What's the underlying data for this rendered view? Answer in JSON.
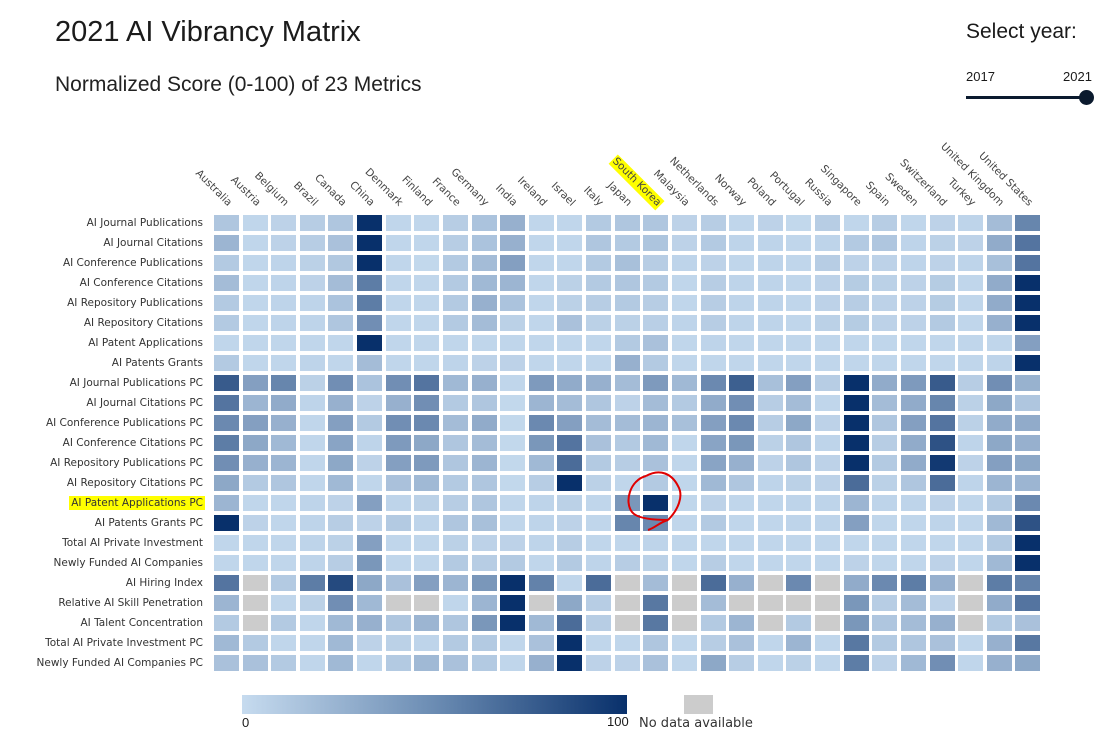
{
  "header": {
    "title": "2021 AI Vibrancy Matrix",
    "subtitle": "Normalized Score (0-100) of 23 Metrics"
  },
  "year_selector": {
    "label": "Select year:",
    "min": "2017",
    "max": "2021",
    "selected": 2021
  },
  "legend": {
    "min_label": "0",
    "max_label": "100",
    "no_data_label": "No data available",
    "color_low": "#c6dbef",
    "color_high": "#08306b",
    "color_na": "#cccccc"
  },
  "highlight": {
    "color": "#ffff00",
    "country": "South Korea",
    "metric": "AI Patent Applications PC",
    "annotation_color": "#e00000"
  },
  "chart_data": {
    "type": "heatmap",
    "title": "2021 AI Vibrancy Matrix",
    "subtitle": "Normalized Score (0-100) of 23 Metrics",
    "value_range": [
      0,
      100
    ],
    "columns": [
      "Australia",
      "Austria",
      "Belgium",
      "Brazil",
      "Canada",
      "China",
      "Denmark",
      "Finland",
      "France",
      "Germany",
      "India",
      "Ireland",
      "Israel",
      "Italy",
      "Japan",
      "South Korea",
      "Malaysia",
      "Netherlands",
      "Norway",
      "Poland",
      "Portugal",
      "Russia",
      "Singapore",
      "Spain",
      "Sweden",
      "Switzerland",
      "Turkey",
      "United Kingdom",
      "United States"
    ],
    "rows": [
      {
        "metric": "AI Journal Publications",
        "values": [
          12,
          3,
          5,
          8,
          12,
          100,
          3,
          3,
          8,
          14,
          25,
          3,
          3,
          10,
          12,
          12,
          5,
          8,
          3,
          5,
          2,
          8,
          3,
          8,
          3,
          5,
          4,
          18,
          50
        ]
      },
      {
        "metric": "AI Journal Citations",
        "values": [
          22,
          3,
          5,
          8,
          15,
          100,
          3,
          3,
          8,
          14,
          25,
          3,
          3,
          12,
          10,
          13,
          5,
          10,
          4,
          4,
          3,
          4,
          10,
          12,
          4,
          6,
          5,
          28,
          60
        ]
      },
      {
        "metric": "AI Conference Publications",
        "values": [
          10,
          3,
          4,
          6,
          11,
          100,
          3,
          2,
          10,
          18,
          35,
          3,
          3,
          10,
          16,
          8,
          4,
          5,
          3,
          4,
          3,
          8,
          5,
          5,
          4,
          5,
          4,
          16,
          60
        ]
      },
      {
        "metric": "AI Conference Citations",
        "values": [
          18,
          3,
          4,
          5,
          18,
          55,
          3,
          3,
          10,
          20,
          22,
          3,
          6,
          10,
          12,
          10,
          3,
          8,
          4,
          4,
          3,
          5,
          9,
          6,
          5,
          9,
          3,
          28,
          100
        ]
      },
      {
        "metric": "AI Repository Publications",
        "values": [
          10,
          3,
          4,
          4,
          14,
          55,
          3,
          3,
          10,
          25,
          14,
          3,
          6,
          8,
          10,
          8,
          3,
          8,
          4,
          4,
          3,
          5,
          8,
          5,
          5,
          9,
          3,
          28,
          100
        ]
      },
      {
        "metric": "AI Repository Citations",
        "values": [
          10,
          3,
          4,
          4,
          12,
          45,
          3,
          3,
          10,
          18,
          6,
          3,
          15,
          6,
          6,
          7,
          4,
          8,
          4,
          4,
          3,
          6,
          9,
          5,
          5,
          10,
          3,
          25,
          100
        ]
      },
      {
        "metric": "AI Patent Applications",
        "values": [
          3,
          3,
          3,
          3,
          3,
          100,
          3,
          3,
          3,
          3,
          3,
          3,
          3,
          3,
          10,
          15,
          3,
          4,
          3,
          3,
          3,
          3,
          3,
          3,
          3,
          3,
          3,
          3,
          35
        ]
      },
      {
        "metric": "AI Patents Grants",
        "values": [
          10,
          3,
          3,
          4,
          3,
          18,
          3,
          3,
          4,
          5,
          5,
          3,
          3,
          3,
          25,
          10,
          3,
          3,
          3,
          3,
          3,
          3,
          3,
          3,
          3,
          3,
          3,
          4,
          100
        ]
      },
      {
        "metric": "AI Journal Publications PC",
        "values": [
          75,
          35,
          50,
          6,
          45,
          14,
          45,
          60,
          20,
          25,
          3,
          38,
          28,
          25,
          18,
          38,
          20,
          48,
          72,
          16,
          35,
          8,
          100,
          28,
          38,
          75,
          8,
          45,
          24
        ]
      },
      {
        "metric": "AI Journal Citations PC",
        "values": [
          60,
          22,
          28,
          4,
          25,
          5,
          25,
          45,
          10,
          12,
          2,
          22,
          18,
          12,
          5,
          18,
          10,
          28,
          45,
          8,
          18,
          3,
          100,
          18,
          28,
          50,
          6,
          30,
          12
        ]
      },
      {
        "metric": "AI Conference Publications PC",
        "values": [
          48,
          35,
          25,
          3,
          35,
          10,
          45,
          48,
          18,
          28,
          2,
          48,
          35,
          18,
          18,
          22,
          16,
          35,
          48,
          8,
          30,
          5,
          100,
          12,
          35,
          60,
          6,
          28,
          28
        ]
      },
      {
        "metric": "AI Conference Citations PC",
        "values": [
          55,
          30,
          20,
          3,
          32,
          4,
          38,
          30,
          12,
          18,
          2,
          40,
          60,
          15,
          10,
          20,
          3,
          32,
          40,
          6,
          12,
          4,
          100,
          8,
          28,
          80,
          4,
          30,
          25
        ]
      },
      {
        "metric": "AI Repository Publications PC",
        "values": [
          45,
          25,
          22,
          3,
          30,
          5,
          35,
          38,
          12,
          22,
          2,
          20,
          65,
          10,
          8,
          15,
          3,
          32,
          25,
          5,
          12,
          5,
          100,
          10,
          28,
          95,
          5,
          35,
          30
        ]
      },
      {
        "metric": "AI Repository Citations PC",
        "values": [
          30,
          10,
          12,
          3,
          20,
          3,
          15,
          20,
          10,
          12,
          2,
          8,
          100,
          6,
          3,
          10,
          3,
          20,
          12,
          4,
          6,
          5,
          65,
          6,
          12,
          65,
          4,
          22,
          22
        ]
      },
      {
        "metric": "AI Patent Applications PC",
        "values": [
          22,
          3,
          3,
          4,
          5,
          35,
          4,
          6,
          8,
          12,
          3,
          4,
          6,
          3,
          40,
          100,
          3,
          5,
          3,
          3,
          4,
          4,
          22,
          4,
          4,
          5,
          3,
          10,
          48
        ]
      },
      {
        "metric": "AI Patents Grants PC",
        "values": [
          100,
          5,
          3,
          4,
          8,
          5,
          10,
          4,
          12,
          16,
          3,
          4,
          5,
          3,
          50,
          48,
          3,
          10,
          3,
          3,
          4,
          4,
          35,
          3,
          3,
          4,
          3,
          20,
          80
        ]
      },
      {
        "metric": "Total AI Private Investment",
        "values": [
          3,
          3,
          3,
          4,
          6,
          35,
          3,
          3,
          6,
          5,
          5,
          4,
          8,
          3,
          3,
          4,
          3,
          3,
          3,
          3,
          3,
          3,
          3,
          3,
          3,
          3,
          3,
          10,
          100
        ]
      },
      {
        "metric": "Newly Funded AI Companies",
        "values": [
          3,
          3,
          3,
          4,
          8,
          40,
          3,
          3,
          10,
          8,
          10,
          3,
          10,
          4,
          8,
          6,
          3,
          8,
          3,
          3,
          3,
          3,
          5,
          3,
          3,
          5,
          3,
          20,
          100
        ]
      },
      {
        "metric": "AI Hiring Index",
        "values": [
          60,
          null,
          10,
          55,
          85,
          30,
          15,
          35,
          22,
          40,
          100,
          52,
          3,
          65,
          null,
          18,
          null,
          65,
          25,
          null,
          48,
          null,
          28,
          48,
          55,
          25,
          null,
          55,
          52
        ]
      },
      {
        "metric": "Relative AI Skill Penetration",
        "values": [
          22,
          null,
          3,
          6,
          45,
          20,
          null,
          null,
          3,
          22,
          100,
          null,
          30,
          8,
          null,
          58,
          null,
          18,
          null,
          null,
          null,
          null,
          40,
          8,
          18,
          5,
          null,
          28,
          60
        ]
      },
      {
        "metric": "AI Talent Concentration",
        "values": [
          10,
          null,
          10,
          3,
          20,
          25,
          12,
          22,
          12,
          40,
          100,
          20,
          65,
          8,
          null,
          58,
          null,
          10,
          22,
          null,
          10,
          null,
          40,
          12,
          18,
          25,
          null,
          10,
          15
        ]
      },
      {
        "metric": "Total AI Private Investment PC",
        "values": [
          20,
          10,
          3,
          3,
          20,
          5,
          6,
          4,
          10,
          10,
          3,
          15,
          100,
          3,
          3,
          12,
          3,
          8,
          15,
          3,
          22,
          3,
          58,
          10,
          12,
          15,
          3,
          25,
          58
        ]
      },
      {
        "metric": "Newly Funded AI Companies PC",
        "values": [
          15,
          15,
          10,
          3,
          20,
          3,
          10,
          20,
          15,
          10,
          3,
          25,
          100,
          5,
          5,
          15,
          3,
          30,
          8,
          3,
          6,
          3,
          55,
          5,
          20,
          45,
          3,
          25,
          30
        ]
      }
    ]
  }
}
